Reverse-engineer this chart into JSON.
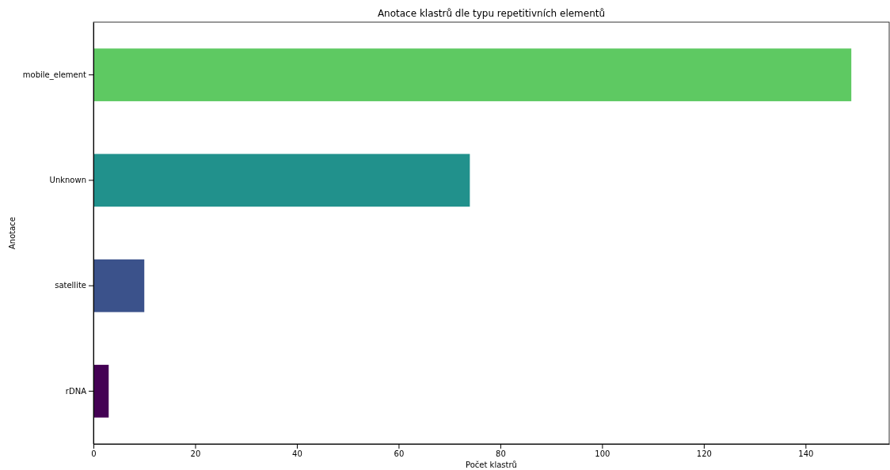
{
  "chart_data": {
    "type": "bar",
    "orientation": "horizontal",
    "title": "Anotace klastrů dle typu repetitivních elementů",
    "xlabel": "Počet klastrů",
    "ylabel": "Anotace",
    "categories": [
      "mobile_element",
      "Unknown",
      "satellite",
      "rDNA"
    ],
    "values": [
      149,
      74,
      10,
      3
    ],
    "colors": [
      "#5ec962",
      "#21918c",
      "#3b528b",
      "#440154"
    ],
    "xlim": [
      0,
      156.45
    ],
    "xticks": [
      0,
      20,
      40,
      60,
      80,
      100,
      120,
      140
    ],
    "grid": false
  }
}
